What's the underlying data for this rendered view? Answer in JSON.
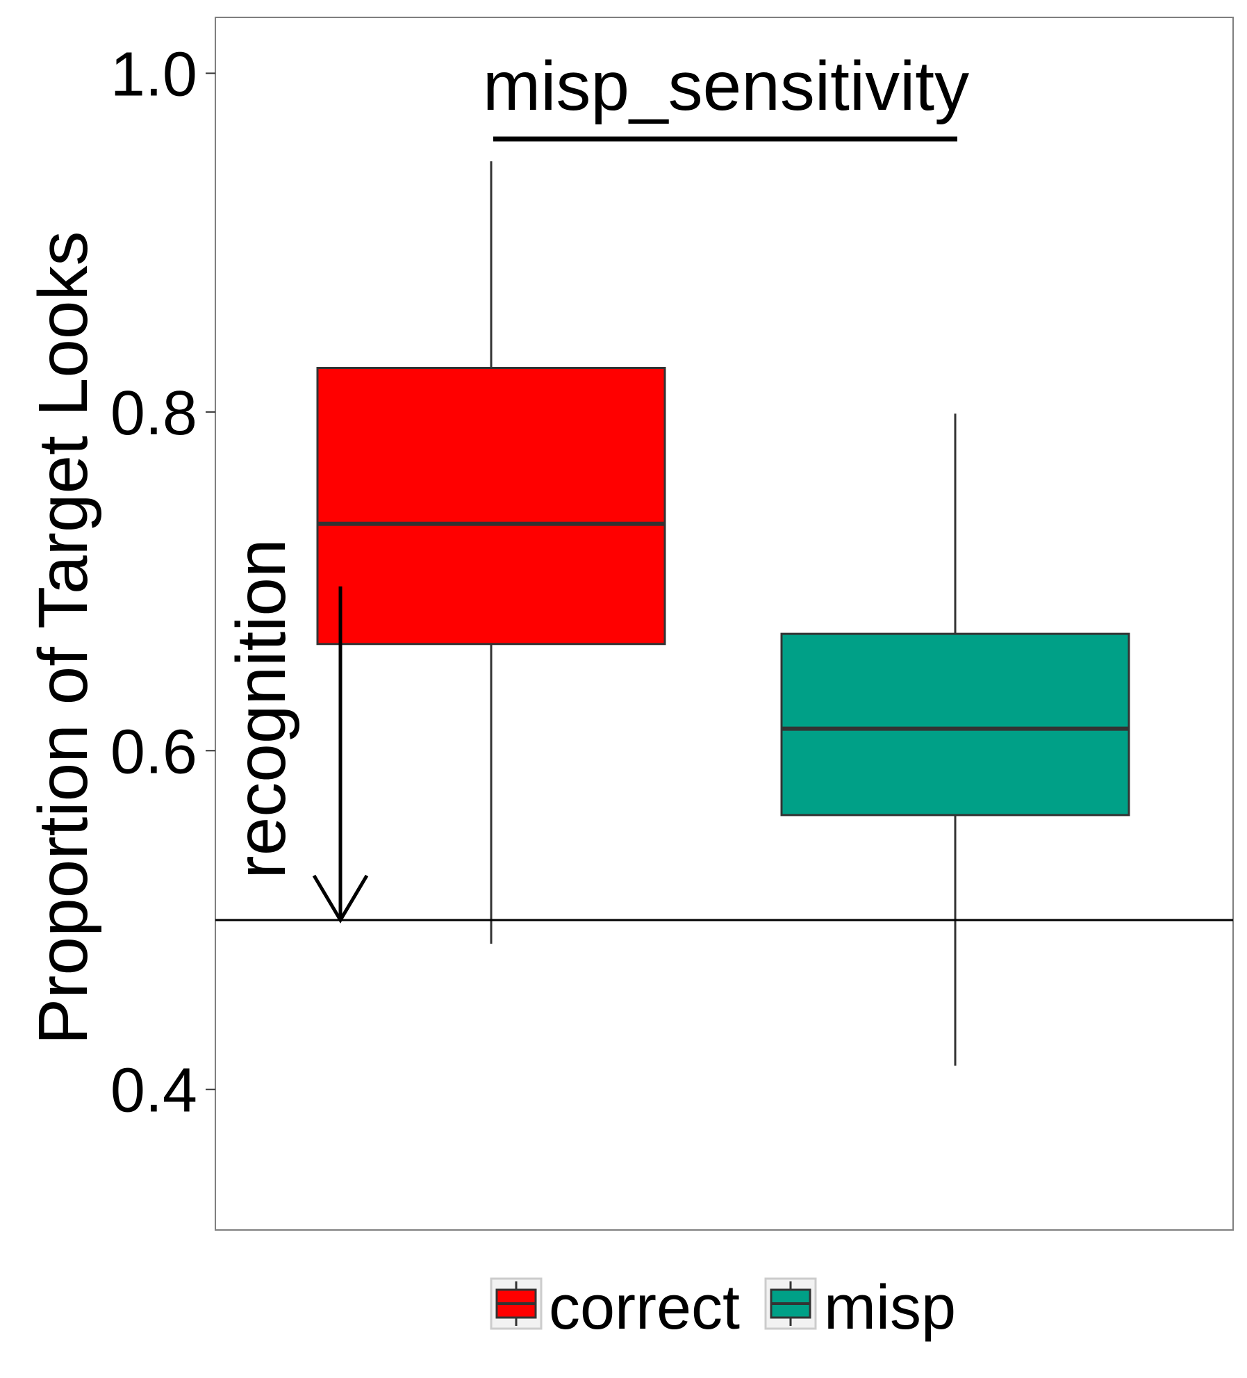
{
  "chart_data": {
    "type": "boxplot",
    "ylabel": "Proportion of Target Looks",
    "xlabel": "",
    "ylim": [
      0.317,
      1.033
    ],
    "yticks": [
      0.4,
      0.6,
      0.8,
      1.0
    ],
    "ytick_labels": [
      "0.4",
      "0.6",
      "0.8",
      "1.0"
    ],
    "grid": false,
    "legend_position": "bottom",
    "series": [
      {
        "name": "correct",
        "color": "#ff0000",
        "whisker_low": 0.486,
        "q1": 0.663,
        "median": 0.734,
        "q3": 0.826,
        "whisker_high": 0.948
      },
      {
        "name": "misp",
        "color": "#00a087",
        "whisker_low": 0.414,
        "q1": 0.562,
        "median": 0.613,
        "q3": 0.669,
        "whisker_high": 0.799
      }
    ],
    "reference_line": {
      "y": 0.5
    },
    "annotations": {
      "comparison_label": "misp_sensitivity",
      "arrow_label": "recognition",
      "arrow_from_y": 0.697,
      "arrow_to_y": 0.5
    }
  }
}
